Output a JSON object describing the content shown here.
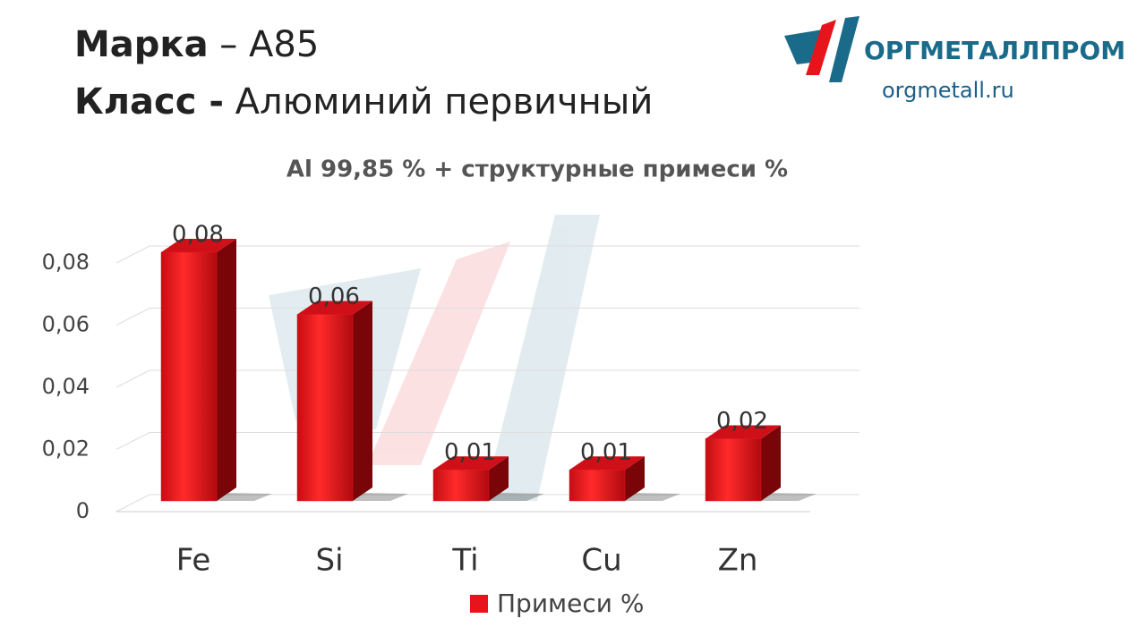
{
  "header": {
    "brand_label": "Марка",
    "brand_value": "– А85",
    "class_label": "Класс -",
    "class_value": "Алюминий первичный"
  },
  "logo": {
    "name": "ОРГМЕТАЛЛПРОМ",
    "url": "orgmetall.ru"
  },
  "chart_data": {
    "type": "bar",
    "title": "Al 99,85 % + структурные примеси %",
    "categories": [
      "Fe",
      "Si",
      "Ti",
      "Cu",
      "Zn"
    ],
    "series": [
      {
        "name": "Примеси %",
        "color": "#e8141c",
        "values": [
          0.08,
          0.06,
          0.01,
          0.01,
          0.02
        ],
        "value_labels": [
          "0,08",
          "0,06",
          "0,01",
          "0,01",
          "0,02"
        ]
      }
    ],
    "ylim": [
      0,
      0.08
    ],
    "yticks": [
      0,
      {
        "value": 0.02,
        "label": "0,02"
      },
      {
        "value": 0.04,
        "label": "0,04"
      },
      {
        "value": 0.06,
        "label": "0,06"
      },
      {
        "value": 0.08,
        "label": "0,08"
      }
    ],
    "grid": true,
    "legend": "bottom"
  }
}
